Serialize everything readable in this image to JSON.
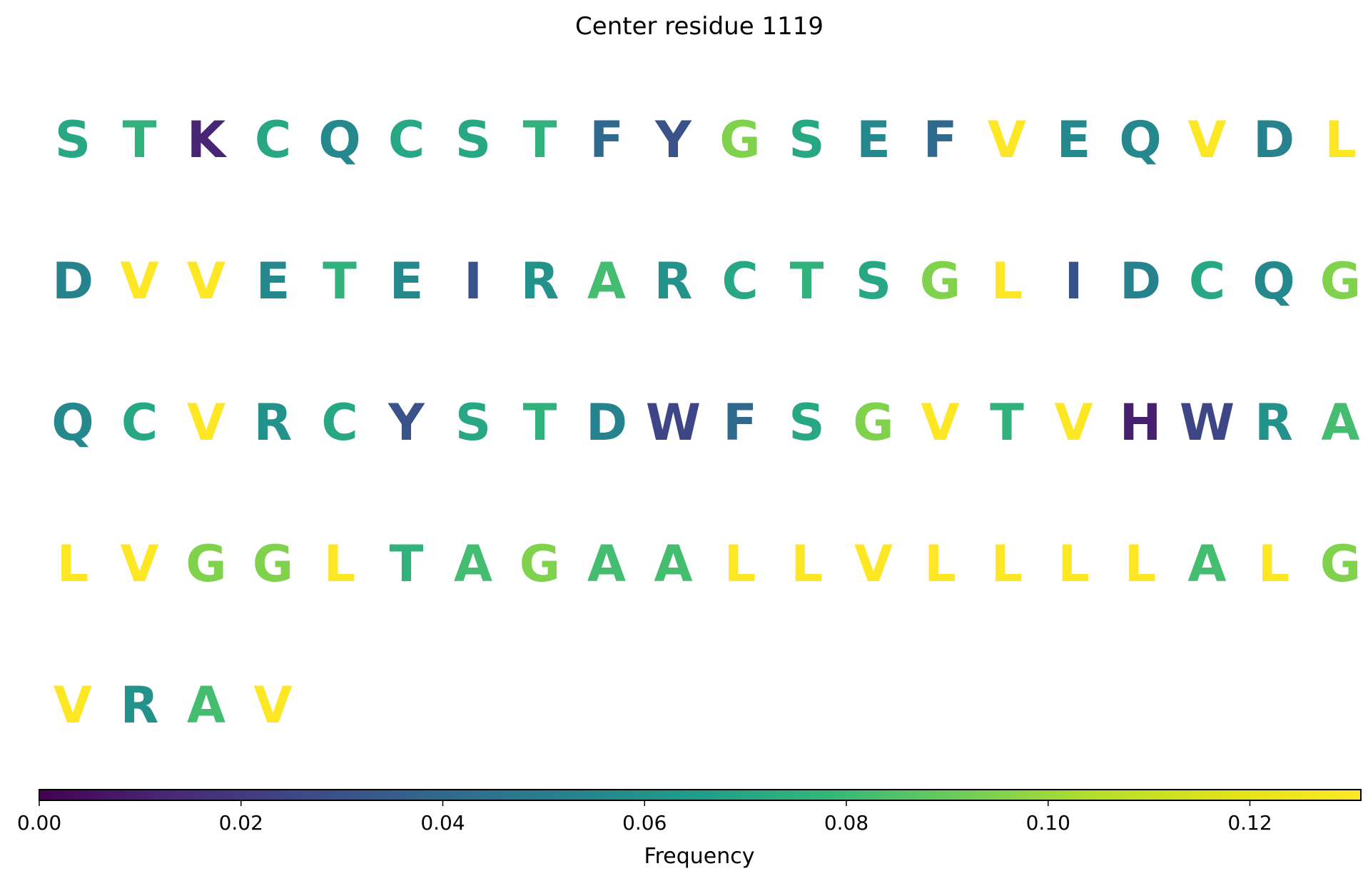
{
  "chart_data": {
    "type": "table",
    "title": "Center residue 1119",
    "colormap": "viridis",
    "residues": [
      {
        "letter": "S",
        "value": 0.07
      },
      {
        "letter": "T",
        "value": 0.076
      },
      {
        "letter": "K",
        "value": 0.012
      },
      {
        "letter": "C",
        "value": 0.07
      },
      {
        "letter": "Q",
        "value": 0.055
      },
      {
        "letter": "C",
        "value": 0.07
      },
      {
        "letter": "S",
        "value": 0.07
      },
      {
        "letter": "T",
        "value": 0.076
      },
      {
        "letter": "F",
        "value": 0.04
      },
      {
        "letter": "Y",
        "value": 0.03
      },
      {
        "letter": "G",
        "value": 0.095
      },
      {
        "letter": "S",
        "value": 0.07
      },
      {
        "letter": "E",
        "value": 0.055
      },
      {
        "letter": "F",
        "value": 0.04
      },
      {
        "letter": "V",
        "value": 0.131
      },
      {
        "letter": "E",
        "value": 0.055
      },
      {
        "letter": "Q",
        "value": 0.055
      },
      {
        "letter": "V",
        "value": 0.131
      },
      {
        "letter": "D",
        "value": 0.053
      },
      {
        "letter": "L",
        "value": 0.131
      },
      {
        "letter": "D",
        "value": 0.053
      },
      {
        "letter": "V",
        "value": 0.131
      },
      {
        "letter": "V",
        "value": 0.131
      },
      {
        "letter": "E",
        "value": 0.055
      },
      {
        "letter": "T",
        "value": 0.076
      },
      {
        "letter": "E",
        "value": 0.055
      },
      {
        "letter": "I",
        "value": 0.03
      },
      {
        "letter": "R",
        "value": 0.06
      },
      {
        "letter": "A",
        "value": 0.082
      },
      {
        "letter": "R",
        "value": 0.06
      },
      {
        "letter": "C",
        "value": 0.07
      },
      {
        "letter": "T",
        "value": 0.076
      },
      {
        "letter": "S",
        "value": 0.07
      },
      {
        "letter": "G",
        "value": 0.095
      },
      {
        "letter": "L",
        "value": 0.131
      },
      {
        "letter": "I",
        "value": 0.03
      },
      {
        "letter": "D",
        "value": 0.053
      },
      {
        "letter": "C",
        "value": 0.07
      },
      {
        "letter": "Q",
        "value": 0.055
      },
      {
        "letter": "G",
        "value": 0.095
      },
      {
        "letter": "Q",
        "value": 0.055
      },
      {
        "letter": "C",
        "value": 0.07
      },
      {
        "letter": "V",
        "value": 0.131
      },
      {
        "letter": "R",
        "value": 0.06
      },
      {
        "letter": "C",
        "value": 0.07
      },
      {
        "letter": "Y",
        "value": 0.03
      },
      {
        "letter": "S",
        "value": 0.07
      },
      {
        "letter": "T",
        "value": 0.076
      },
      {
        "letter": "D",
        "value": 0.053
      },
      {
        "letter": "W",
        "value": 0.025
      },
      {
        "letter": "F",
        "value": 0.04
      },
      {
        "letter": "S",
        "value": 0.07
      },
      {
        "letter": "G",
        "value": 0.095
      },
      {
        "letter": "V",
        "value": 0.131
      },
      {
        "letter": "T",
        "value": 0.076
      },
      {
        "letter": "V",
        "value": 0.131
      },
      {
        "letter": "H",
        "value": 0.01
      },
      {
        "letter": "W",
        "value": 0.025
      },
      {
        "letter": "R",
        "value": 0.06
      },
      {
        "letter": "A",
        "value": 0.082
      },
      {
        "letter": "L",
        "value": 0.131
      },
      {
        "letter": "V",
        "value": 0.131
      },
      {
        "letter": "G",
        "value": 0.095
      },
      {
        "letter": "G",
        "value": 0.095
      },
      {
        "letter": "L",
        "value": 0.131
      },
      {
        "letter": "T",
        "value": 0.076
      },
      {
        "letter": "A",
        "value": 0.082
      },
      {
        "letter": "G",
        "value": 0.095
      },
      {
        "letter": "A",
        "value": 0.082
      },
      {
        "letter": "A",
        "value": 0.082
      },
      {
        "letter": "L",
        "value": 0.131
      },
      {
        "letter": "L",
        "value": 0.131
      },
      {
        "letter": "V",
        "value": 0.131
      },
      {
        "letter": "L",
        "value": 0.131
      },
      {
        "letter": "L",
        "value": 0.131
      },
      {
        "letter": "L",
        "value": 0.131
      },
      {
        "letter": "L",
        "value": 0.131
      },
      {
        "letter": "A",
        "value": 0.082
      },
      {
        "letter": "L",
        "value": 0.131
      },
      {
        "letter": "G",
        "value": 0.095
      },
      {
        "letter": "V",
        "value": 0.131
      },
      {
        "letter": "R",
        "value": 0.06
      },
      {
        "letter": "A",
        "value": 0.082
      },
      {
        "letter": "V",
        "value": 0.131
      }
    ],
    "colorbar": {
      "label": "Frequency",
      "range": [
        0,
        0.131
      ],
      "ticks": [
        0.0,
        0.02,
        0.04,
        0.06,
        0.08,
        0.1,
        0.12
      ],
      "tick_labels": [
        "0.00",
        "0.02",
        "0.04",
        "0.06",
        "0.08",
        "0.10",
        "0.12"
      ],
      "orientation": "horizontal",
      "placement": "bottom"
    }
  }
}
